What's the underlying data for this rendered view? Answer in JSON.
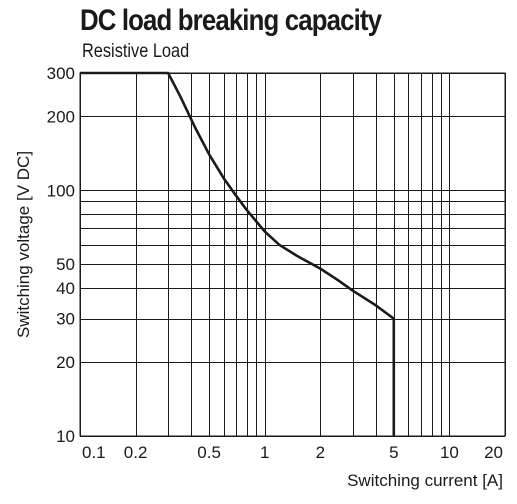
{
  "chart_data": {
    "type": "line",
    "title": "DC load breaking capacity",
    "subtitle": "Resistive Load",
    "xlabel": "Switching current [A]",
    "ylabel": "Switching voltage [V DC]",
    "xscale": "log",
    "yscale": "log",
    "xlim": [
      0.1,
      20
    ],
    "ylim": [
      10,
      300
    ],
    "grid": true,
    "x_ticks": [
      0.1,
      0.2,
      0.5,
      1,
      2,
      5,
      10,
      20
    ],
    "x_tick_labels": [
      "0.1",
      "0.2",
      "0.5",
      "1",
      "2",
      "5",
      "10",
      "20"
    ],
    "x_grid": [
      0.1,
      0.2,
      0.3,
      0.4,
      0.5,
      0.6,
      0.7,
      0.8,
      0.9,
      1,
      2,
      3,
      4,
      5,
      6,
      7,
      8,
      9,
      10,
      20
    ],
    "y_ticks": [
      10,
      20,
      30,
      40,
      50,
      100,
      200,
      300
    ],
    "y_tick_labels": [
      "10",
      "20",
      "30",
      "40",
      "50",
      "100",
      "200",
      "300"
    ],
    "y_grid": [
      10,
      20,
      30,
      40,
      50,
      60,
      70,
      80,
      90,
      100,
      200,
      300
    ],
    "series": [
      {
        "x": [
          0.1,
          0.3,
          0.35,
          0.42,
          0.5,
          0.6,
          0.7,
          0.8,
          1.0,
          1.2,
          1.5,
          2.0,
          2.5,
          3.0,
          4.0,
          5.0,
          5.0
        ],
        "y": [
          300,
          300,
          240,
          180,
          140,
          112,
          95,
          83,
          68,
          60,
          54,
          48,
          43,
          39,
          34,
          30,
          10
        ]
      }
    ]
  }
}
